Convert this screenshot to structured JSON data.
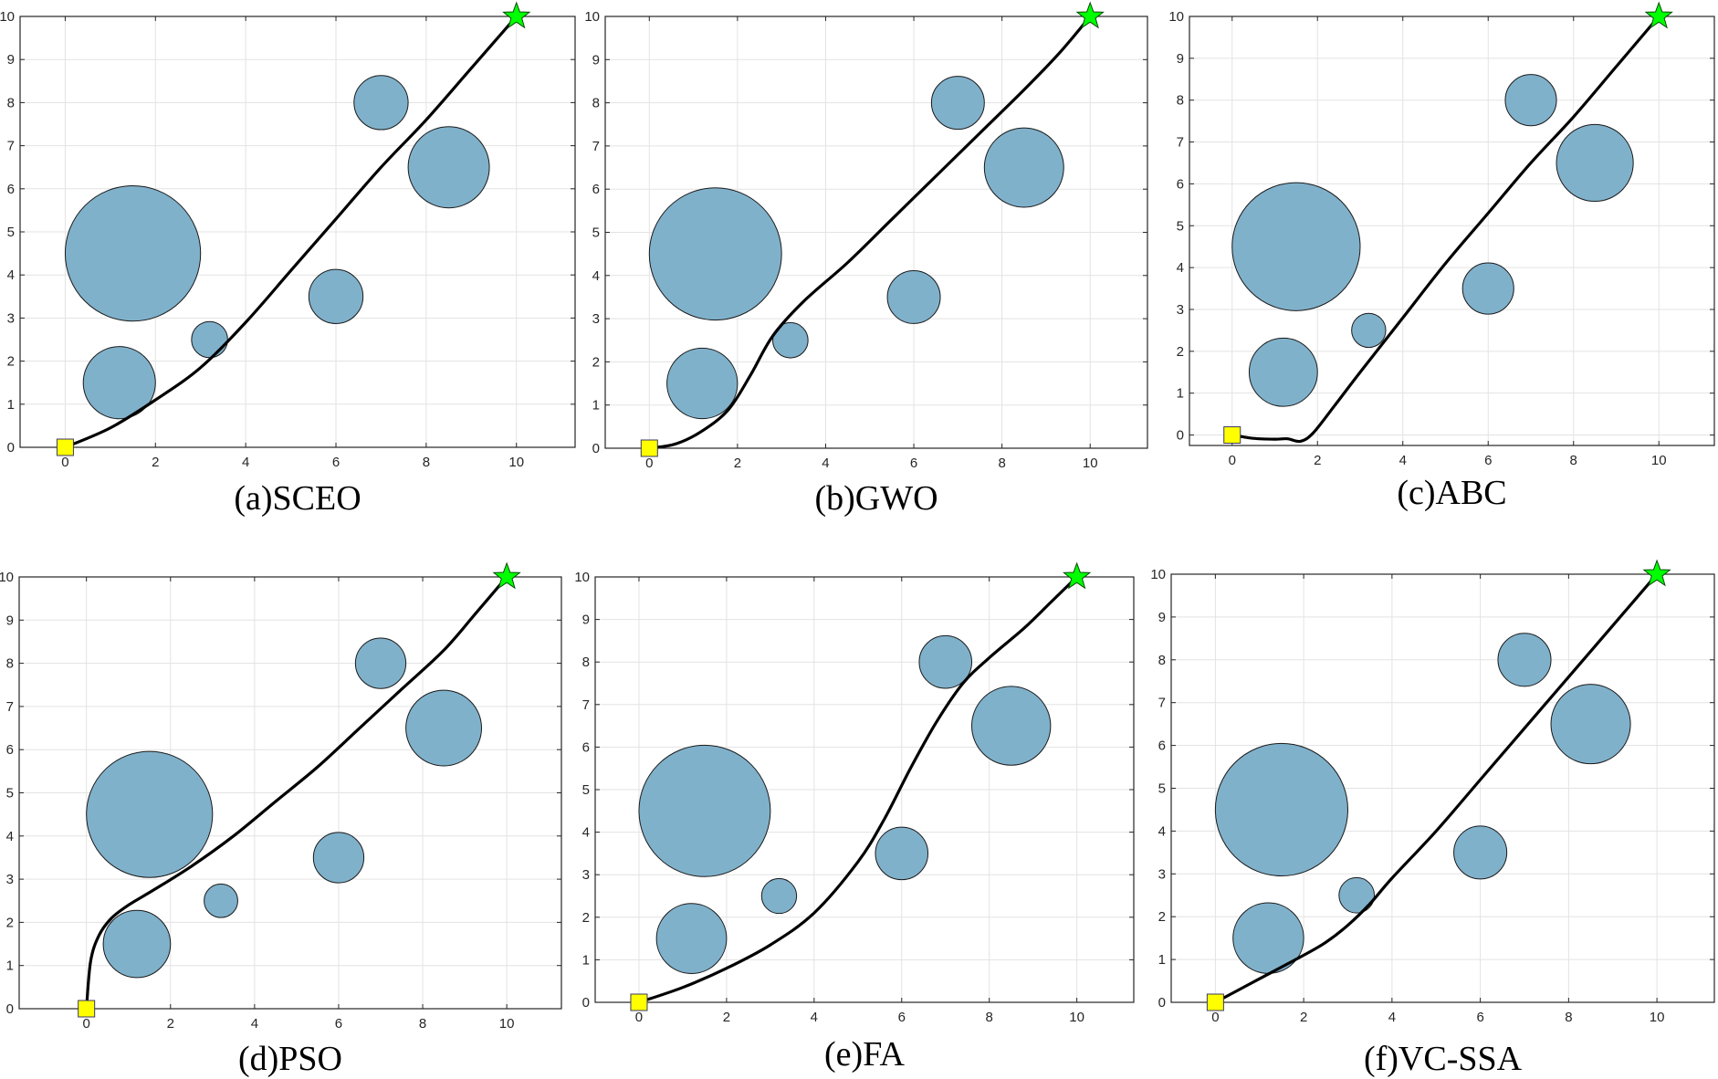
{
  "figure": {
    "colors": {
      "obstacle_fill": "#80B1CB",
      "obstacle_edge": "#1a1a1a",
      "path": "#000000",
      "start_fill": "#FFFF00",
      "goal_fill": "#00FF00",
      "grid": "#e3e3e3",
      "axes": "#262626"
    },
    "marker_icons": {
      "start": "square-icon",
      "goal": "star-icon"
    }
  },
  "chart_data": [
    {
      "type": "scatter",
      "title": "(a)SCEO",
      "xlabel": "",
      "ylabel": "",
      "xlim": [
        -1,
        11.3
      ],
      "ylim": [
        0,
        10
      ],
      "xticks": [
        0,
        2,
        4,
        6,
        8,
        10
      ],
      "yticks": [
        0,
        1,
        2,
        3,
        4,
        5,
        6,
        7,
        8,
        9,
        10
      ],
      "grid": true,
      "obstacles": [
        {
          "x": 1.5,
          "y": 4.5,
          "r": 1.5
        },
        {
          "x": 1.2,
          "y": 1.5,
          "r": 0.8
        },
        {
          "x": 3.2,
          "y": 2.5,
          "r": 0.4
        },
        {
          "x": 6.0,
          "y": 3.5,
          "r": 0.6
        },
        {
          "x": 7.0,
          "y": 8.0,
          "r": 0.6
        },
        {
          "x": 8.5,
          "y": 6.5,
          "r": 0.9
        }
      ],
      "start": {
        "x": 0,
        "y": 0
      },
      "goal": {
        "x": 10,
        "y": 10
      },
      "path": {
        "x": [
          0,
          1,
          2,
          3,
          4,
          5,
          6,
          7,
          8,
          9,
          10
        ],
        "y": [
          0,
          0.45,
          1.1,
          1.85,
          2.9,
          4.1,
          5.3,
          6.5,
          7.6,
          8.8,
          10
        ]
      }
    },
    {
      "type": "scatter",
      "title": "(b)GWO",
      "xlabel": "",
      "ylabel": "",
      "xlim": [
        -1,
        11.3
      ],
      "ylim": [
        0,
        10
      ],
      "xticks": [
        0,
        2,
        4,
        6,
        8,
        10
      ],
      "yticks": [
        0,
        1,
        2,
        3,
        4,
        5,
        6,
        7,
        8,
        9,
        10
      ],
      "grid": true,
      "obstacles": [
        {
          "x": 1.5,
          "y": 4.5,
          "r": 1.5
        },
        {
          "x": 1.2,
          "y": 1.5,
          "r": 0.8
        },
        {
          "x": 3.2,
          "y": 2.5,
          "r": 0.4
        },
        {
          "x": 6.0,
          "y": 3.5,
          "r": 0.6
        },
        {
          "x": 7.0,
          "y": 8.0,
          "r": 0.6
        },
        {
          "x": 8.5,
          "y": 6.5,
          "r": 0.9
        }
      ],
      "start": {
        "x": 0,
        "y": 0
      },
      "goal": {
        "x": 10,
        "y": 10
      },
      "path": {
        "x": [
          0,
          0.6,
          1.2,
          1.8,
          2.3,
          2.8,
          3.5,
          4.5,
          5.5,
          6.5,
          7.5,
          8.5,
          9.3,
          10
        ],
        "y": [
          0,
          0.1,
          0.4,
          0.9,
          1.7,
          2.6,
          3.4,
          4.3,
          5.3,
          6.3,
          7.3,
          8.3,
          9.15,
          10
        ]
      }
    },
    {
      "type": "scatter",
      "title": "(c)ABC",
      "xlabel": "",
      "ylabel": "",
      "xlim": [
        -1,
        11.3
      ],
      "ylim": [
        -0.25,
        10
      ],
      "xticks": [
        0,
        2,
        4,
        6,
        8,
        10
      ],
      "yticks": [
        0,
        1,
        2,
        3,
        4,
        5,
        6,
        7,
        8,
        9,
        10
      ],
      "grid": true,
      "obstacles": [
        {
          "x": 1.5,
          "y": 4.5,
          "r": 1.5
        },
        {
          "x": 1.2,
          "y": 1.5,
          "r": 0.8
        },
        {
          "x": 3.2,
          "y": 2.5,
          "r": 0.4
        },
        {
          "x": 6.0,
          "y": 3.5,
          "r": 0.6
        },
        {
          "x": 7.0,
          "y": 8.0,
          "r": 0.6
        },
        {
          "x": 8.5,
          "y": 6.5,
          "r": 0.9
        }
      ],
      "start": {
        "x": 0,
        "y": 0
      },
      "goal": {
        "x": 10,
        "y": 10
      },
      "path": {
        "x": [
          0,
          0.5,
          1.0,
          1.3,
          1.6,
          1.9,
          2.4,
          3.0,
          4.0,
          5.0,
          6.0,
          7.0,
          8.0,
          9.0,
          10
        ],
        "y": [
          0,
          -0.08,
          -0.1,
          -0.09,
          -0.15,
          0.05,
          0.7,
          1.5,
          2.8,
          4.1,
          5.3,
          6.5,
          7.6,
          8.8,
          10
        ]
      }
    },
    {
      "type": "scatter",
      "title": "(d)PSO",
      "xlabel": "",
      "ylabel": "",
      "xlim": [
        -1.6,
        11.3
      ],
      "ylim": [
        0,
        10
      ],
      "xticks": [
        0,
        2,
        4,
        6,
        8,
        10
      ],
      "yticks": [
        0,
        1,
        2,
        3,
        4,
        5,
        6,
        7,
        8,
        9,
        10
      ],
      "grid": true,
      "obstacles": [
        {
          "x": 1.5,
          "y": 4.5,
          "r": 1.5
        },
        {
          "x": 1.2,
          "y": 1.5,
          "r": 0.8
        },
        {
          "x": 3.2,
          "y": 2.5,
          "r": 0.4
        },
        {
          "x": 6.0,
          "y": 3.5,
          "r": 0.6
        },
        {
          "x": 7.0,
          "y": 8.0,
          "r": 0.6
        },
        {
          "x": 8.5,
          "y": 6.5,
          "r": 0.9
        }
      ],
      "start": {
        "x": 0,
        "y": 0
      },
      "goal": {
        "x": 10,
        "y": 10
      },
      "path": {
        "x": [
          0,
          0.1,
          0.3,
          0.6,
          1.0,
          1.6,
          2.5,
          3.5,
          4.5,
          5.5,
          6.5,
          7.5,
          8.5,
          9.3,
          10
        ],
        "y": [
          0,
          1.1,
          1.7,
          2.1,
          2.4,
          2.75,
          3.3,
          4.0,
          4.8,
          5.6,
          6.5,
          7.4,
          8.3,
          9.2,
          10
        ]
      }
    },
    {
      "type": "scatter",
      "title": "(e)FA",
      "xlabel": "",
      "ylabel": "",
      "xlim": [
        -1,
        11.3
      ],
      "ylim": [
        0,
        10
      ],
      "xticks": [
        0,
        2,
        4,
        6,
        8,
        10
      ],
      "yticks": [
        0,
        1,
        2,
        3,
        4,
        5,
        6,
        7,
        8,
        9,
        10
      ],
      "grid": true,
      "obstacles": [
        {
          "x": 1.5,
          "y": 4.5,
          "r": 1.5
        },
        {
          "x": 1.2,
          "y": 1.5,
          "r": 0.8
        },
        {
          "x": 3.2,
          "y": 2.5,
          "r": 0.4
        },
        {
          "x": 6.0,
          "y": 3.5,
          "r": 0.6
        },
        {
          "x": 7.0,
          "y": 8.0,
          "r": 0.6
        },
        {
          "x": 8.5,
          "y": 6.5,
          "r": 0.9
        }
      ],
      "start": {
        "x": 0,
        "y": 0
      },
      "goal": {
        "x": 10,
        "y": 10
      },
      "path": {
        "x": [
          0,
          1,
          2,
          3,
          4,
          5,
          5.6,
          6.2,
          6.8,
          7.4,
          8.0,
          8.8,
          9.4,
          10
        ],
        "y": [
          0,
          0.35,
          0.8,
          1.35,
          2.1,
          3.3,
          4.3,
          5.5,
          6.6,
          7.5,
          8.1,
          8.8,
          9.4,
          10
        ]
      }
    },
    {
      "type": "scatter",
      "title": "(f)VC-SSA",
      "xlabel": "",
      "ylabel": "",
      "xlim": [
        -1,
        11.3
      ],
      "ylim": [
        0,
        10
      ],
      "xticks": [
        0,
        2,
        4,
        6,
        8,
        10
      ],
      "yticks": [
        0,
        1,
        2,
        3,
        4,
        5,
        6,
        7,
        8,
        9,
        10
      ],
      "grid": true,
      "obstacles": [
        {
          "x": 1.5,
          "y": 4.5,
          "r": 1.5
        },
        {
          "x": 1.2,
          "y": 1.5,
          "r": 0.8
        },
        {
          "x": 3.2,
          "y": 2.5,
          "r": 0.4
        },
        {
          "x": 6.0,
          "y": 3.5,
          "r": 0.6
        },
        {
          "x": 7.0,
          "y": 8.0,
          "r": 0.6
        },
        {
          "x": 8.5,
          "y": 6.5,
          "r": 0.9
        }
      ],
      "start": {
        "x": 0,
        "y": 0
      },
      "goal": {
        "x": 10,
        "y": 10
      },
      "path": {
        "x": [
          0,
          1,
          2,
          2.5,
          3.0,
          3.5,
          4.0,
          5.0,
          6.0,
          7.0,
          8.0,
          9.0,
          10
        ],
        "y": [
          0,
          0.55,
          1.1,
          1.4,
          1.8,
          2.3,
          2.9,
          4.0,
          5.2,
          6.4,
          7.6,
          8.8,
          10
        ]
      }
    }
  ]
}
